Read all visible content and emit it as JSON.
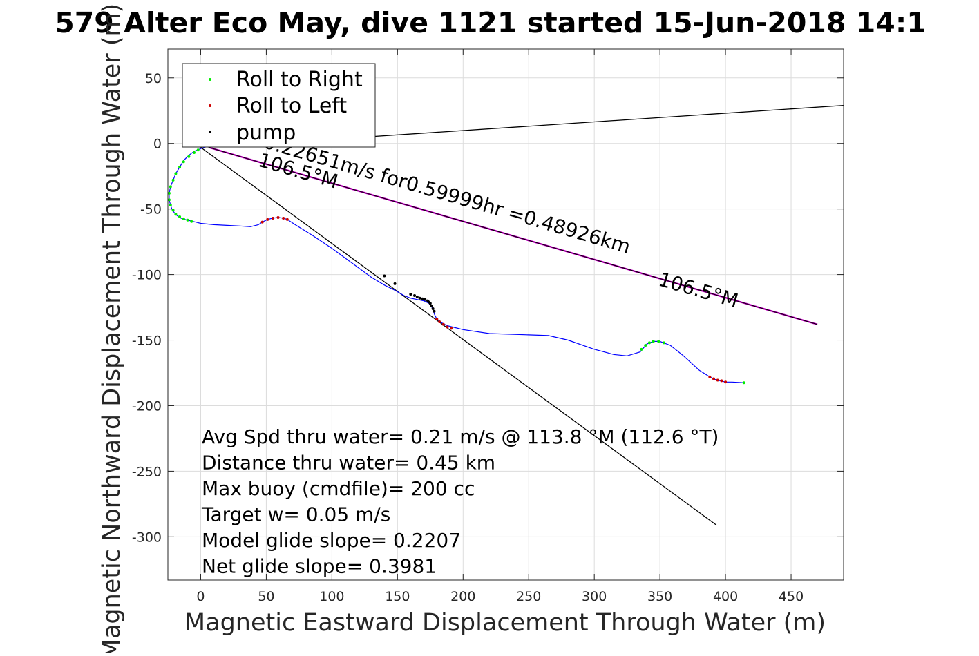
{
  "chart_data": {
    "type": "scatter",
    "title": "579 Alter Eco May, dive 1121 started 15-Jun-2018 14:1",
    "xlabel": "Magnetic Eastward Displacement Through Water (m)",
    "ylabel": "Magnetic Northward Displacement Through Water (m)",
    "xlim": [
      -25,
      490
    ],
    "ylim": [
      -333,
      72
    ],
    "xticks": [
      0,
      50,
      100,
      150,
      200,
      250,
      300,
      350,
      400,
      450
    ],
    "yticks": [
      50,
      0,
      -50,
      -100,
      -150,
      -200,
      -250,
      -300
    ],
    "xtick_labels": [
      "0",
      "50",
      "100",
      "150",
      "200",
      "250",
      "300",
      "350",
      "400",
      "450"
    ],
    "ytick_labels": [
      "50",
      "0",
      "-50",
      "-100",
      "-150",
      "-200",
      "-250",
      "-300"
    ],
    "grid": true,
    "legend_position": "top-left",
    "legend": [
      "Roll to Right",
      "Roll to Left",
      "pump"
    ],
    "colors": {
      "track": "#0000ff",
      "roll_right": "#00ee00",
      "roll_left": "#cc0000",
      "pump": "#000000",
      "current_line": "#cc00cc",
      "reference_line": "#000000",
      "grid": "#dcdcdc"
    },
    "track": {
      "x": [
        6,
        0,
        -5,
        -9,
        -13,
        -16,
        -19,
        -21,
        -23,
        -24,
        -24,
        -23,
        -22,
        -20,
        -18,
        -15,
        -12,
        -8,
        -4,
        0,
        10,
        20,
        30,
        38,
        44,
        47,
        51,
        55,
        59,
        63,
        66,
        72,
        85,
        100,
        115,
        130,
        140,
        148,
        155,
        160,
        165,
        170,
        174,
        177,
        178,
        180,
        184,
        188,
        192,
        200,
        220,
        250,
        265,
        280,
        300,
        315,
        325,
        335,
        340,
        345,
        350,
        358,
        368,
        380,
        388,
        392,
        396,
        400,
        405,
        414
      ],
      "y": [
        -2,
        -4,
        -6,
        -9,
        -13,
        -18,
        -23,
        -28,
        -33,
        -38,
        -43,
        -47,
        -50,
        -53,
        -55,
        -57,
        -58,
        -59,
        -60,
        -61,
        -62,
        -62.5,
        -63,
        -63.5,
        -62,
        -60,
        -58,
        -57,
        -56.5,
        -57,
        -58,
        -62,
        -70,
        -80,
        -91,
        -102,
        -108,
        -112,
        -116,
        -118,
        -119,
        -120,
        -122,
        -126,
        -130,
        -134,
        -137,
        -139,
        -140,
        -142,
        -145,
        -146,
        -146.5,
        -150,
        -157,
        -161,
        -162,
        -159,
        -153,
        -151,
        -151,
        -154,
        -162,
        -173,
        -178,
        -180,
        -181,
        -182,
        -182,
        -182.5
      ]
    },
    "roll_right": {
      "x": [
        -2,
        -5,
        -9,
        -13,
        -16,
        -19,
        -21,
        -23,
        -24,
        -24,
        -23,
        -21,
        -19,
        -16,
        -13,
        -10,
        -7,
        336,
        339,
        342,
        345,
        349,
        353,
        414
      ],
      "y": [
        -5,
        -7,
        -10,
        -14,
        -18,
        -23,
        -28,
        -33,
        -38,
        -43,
        -47,
        -51,
        -54,
        -56,
        -57.5,
        -58.5,
        -59.5,
        -157,
        -154,
        -152,
        -151,
        -151,
        -152,
        -182.5
      ]
    },
    "roll_left": {
      "x": [
        47,
        51,
        55,
        59,
        63,
        66,
        180,
        182,
        185,
        188,
        191,
        388,
        391,
        394,
        397,
        400
      ],
      "y": [
        -60,
        -58,
        -57,
        -56.5,
        -57,
        -58,
        -134,
        -136,
        -138,
        -140,
        -141,
        -178,
        -179.5,
        -180.5,
        -181,
        -182
      ]
    },
    "pump": {
      "x": [
        140,
        148,
        160,
        163,
        165,
        167,
        169,
        171,
        173,
        174,
        175,
        176,
        177,
        178
      ],
      "y": [
        -101,
        -107,
        -115,
        -116,
        -117,
        -118,
        -118.5,
        -119,
        -120,
        -121,
        -122,
        -124,
        -126,
        -128
      ]
    },
    "current_line": {
      "x": [
        6,
        470
      ],
      "y": [
        -3,
        -138
      ]
    },
    "heading_line_1": {
      "x": [
        0,
        393
      ],
      "y": [
        -3,
        -291
      ]
    },
    "heading_line_2": {
      "x": [
        6,
        490
      ],
      "y": [
        -3,
        29
      ]
    },
    "annotations": [
      {
        "text": "0.22651m/s for0.59999hr =0.48926km",
        "x": 47,
        "y": -3,
        "rotation_deg": 16.2
      },
      {
        "text": "106.5°M",
        "x": 43,
        "y": -17,
        "rotation_deg": 16.2
      },
      {
        "text": "106.5°M",
        "x": 348,
        "y": -108,
        "rotation_deg": 16.2
      }
    ],
    "stats": [
      "Avg Spd thru water=  0.21 m/s @ 113.8 °M (112.6 °T)",
      "Distance thru water=  0.45 km",
      "Max buoy (cmdfile)= 200 cc",
      "Target w= 0.05 m/s",
      "Model glide slope= 0.2207",
      "Net glide slope= 0.3981"
    ]
  }
}
